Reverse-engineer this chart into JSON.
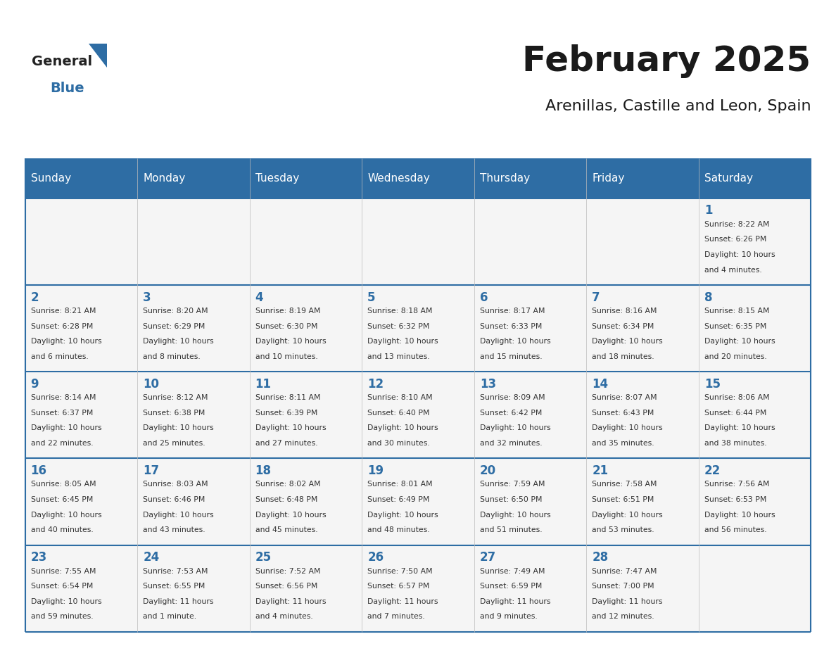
{
  "title": "February 2025",
  "subtitle": "Arenillas, Castille and Leon, Spain",
  "header_bg_color": "#2E6DA4",
  "header_text_color": "#FFFFFF",
  "cell_bg_color": "#F5F5F5",
  "border_color": "#2E6DA4",
  "title_color": "#1a1a1a",
  "subtitle_color": "#1a1a1a",
  "day_number_color": "#2E6DA4",
  "cell_text_color": "#333333",
  "days_of_week": [
    "Sunday",
    "Monday",
    "Tuesday",
    "Wednesday",
    "Thursday",
    "Friday",
    "Saturday"
  ],
  "weeks": [
    [
      {
        "day": null,
        "info": null
      },
      {
        "day": null,
        "info": null
      },
      {
        "day": null,
        "info": null
      },
      {
        "day": null,
        "info": null
      },
      {
        "day": null,
        "info": null
      },
      {
        "day": null,
        "info": null
      },
      {
        "day": 1,
        "info": "Sunrise: 8:22 AM\nSunset: 6:26 PM\nDaylight: 10 hours\nand 4 minutes."
      }
    ],
    [
      {
        "day": 2,
        "info": "Sunrise: 8:21 AM\nSunset: 6:28 PM\nDaylight: 10 hours\nand 6 minutes."
      },
      {
        "day": 3,
        "info": "Sunrise: 8:20 AM\nSunset: 6:29 PM\nDaylight: 10 hours\nand 8 minutes."
      },
      {
        "day": 4,
        "info": "Sunrise: 8:19 AM\nSunset: 6:30 PM\nDaylight: 10 hours\nand 10 minutes."
      },
      {
        "day": 5,
        "info": "Sunrise: 8:18 AM\nSunset: 6:32 PM\nDaylight: 10 hours\nand 13 minutes."
      },
      {
        "day": 6,
        "info": "Sunrise: 8:17 AM\nSunset: 6:33 PM\nDaylight: 10 hours\nand 15 minutes."
      },
      {
        "day": 7,
        "info": "Sunrise: 8:16 AM\nSunset: 6:34 PM\nDaylight: 10 hours\nand 18 minutes."
      },
      {
        "day": 8,
        "info": "Sunrise: 8:15 AM\nSunset: 6:35 PM\nDaylight: 10 hours\nand 20 minutes."
      }
    ],
    [
      {
        "day": 9,
        "info": "Sunrise: 8:14 AM\nSunset: 6:37 PM\nDaylight: 10 hours\nand 22 minutes."
      },
      {
        "day": 10,
        "info": "Sunrise: 8:12 AM\nSunset: 6:38 PM\nDaylight: 10 hours\nand 25 minutes."
      },
      {
        "day": 11,
        "info": "Sunrise: 8:11 AM\nSunset: 6:39 PM\nDaylight: 10 hours\nand 27 minutes."
      },
      {
        "day": 12,
        "info": "Sunrise: 8:10 AM\nSunset: 6:40 PM\nDaylight: 10 hours\nand 30 minutes."
      },
      {
        "day": 13,
        "info": "Sunrise: 8:09 AM\nSunset: 6:42 PM\nDaylight: 10 hours\nand 32 minutes."
      },
      {
        "day": 14,
        "info": "Sunrise: 8:07 AM\nSunset: 6:43 PM\nDaylight: 10 hours\nand 35 minutes."
      },
      {
        "day": 15,
        "info": "Sunrise: 8:06 AM\nSunset: 6:44 PM\nDaylight: 10 hours\nand 38 minutes."
      }
    ],
    [
      {
        "day": 16,
        "info": "Sunrise: 8:05 AM\nSunset: 6:45 PM\nDaylight: 10 hours\nand 40 minutes."
      },
      {
        "day": 17,
        "info": "Sunrise: 8:03 AM\nSunset: 6:46 PM\nDaylight: 10 hours\nand 43 minutes."
      },
      {
        "day": 18,
        "info": "Sunrise: 8:02 AM\nSunset: 6:48 PM\nDaylight: 10 hours\nand 45 minutes."
      },
      {
        "day": 19,
        "info": "Sunrise: 8:01 AM\nSunset: 6:49 PM\nDaylight: 10 hours\nand 48 minutes."
      },
      {
        "day": 20,
        "info": "Sunrise: 7:59 AM\nSunset: 6:50 PM\nDaylight: 10 hours\nand 51 minutes."
      },
      {
        "day": 21,
        "info": "Sunrise: 7:58 AM\nSunset: 6:51 PM\nDaylight: 10 hours\nand 53 minutes."
      },
      {
        "day": 22,
        "info": "Sunrise: 7:56 AM\nSunset: 6:53 PM\nDaylight: 10 hours\nand 56 minutes."
      }
    ],
    [
      {
        "day": 23,
        "info": "Sunrise: 7:55 AM\nSunset: 6:54 PM\nDaylight: 10 hours\nand 59 minutes."
      },
      {
        "day": 24,
        "info": "Sunrise: 7:53 AM\nSunset: 6:55 PM\nDaylight: 11 hours\nand 1 minute."
      },
      {
        "day": 25,
        "info": "Sunrise: 7:52 AM\nSunset: 6:56 PM\nDaylight: 11 hours\nand 4 minutes."
      },
      {
        "day": 26,
        "info": "Sunrise: 7:50 AM\nSunset: 6:57 PM\nDaylight: 11 hours\nand 7 minutes."
      },
      {
        "day": 27,
        "info": "Sunrise: 7:49 AM\nSunset: 6:59 PM\nDaylight: 11 hours\nand 9 minutes."
      },
      {
        "day": 28,
        "info": "Sunrise: 7:47 AM\nSunset: 7:00 PM\nDaylight: 11 hours\nand 12 minutes."
      },
      {
        "day": null,
        "info": null
      }
    ]
  ],
  "figsize": [
    11.88,
    9.18
  ],
  "dpi": 100
}
